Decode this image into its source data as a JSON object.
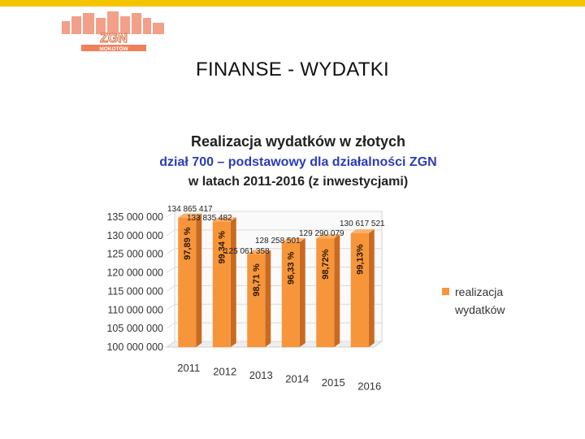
{
  "slide": {
    "title": "FINANSE - WYDATKI",
    "logo_text": "ZGN",
    "logo_subtext": "MOKOTÓW",
    "accent_bar_color": "#f5c400",
    "logo_color": "#f07f5b"
  },
  "chart_data": {
    "type": "bar",
    "style": "3d-cylinder",
    "title": "Realizacja wydatków w złotych",
    "subtitle_line1": "dział 700 – podstawowy dla działalności ZGN",
    "subtitle_line2": "w latach 2011-2016 (z inwestycjami)",
    "categories": [
      "2011",
      "2012",
      "2013",
      "2014",
      "2015",
      "2016"
    ],
    "series": [
      {
        "name": "realizacja wydatków",
        "values": [
          134865417,
          133835482,
          125061358,
          128258501,
          129290079,
          130617521
        ],
        "value_labels": [
          "134 865 417",
          "133 835 482",
          "125 061 358",
          "128 258 501",
          "129 290 079",
          "130 617 521"
        ],
        "percent_labels": [
          "97,89 %",
          "99,34 %",
          "98,71 %",
          "96,33 %",
          "98,72%",
          "99,13%"
        ],
        "color": "#f7953a"
      }
    ],
    "y_ticks": [
      100000000,
      105000000,
      110000000,
      115000000,
      120000000,
      125000000,
      130000000,
      135000000
    ],
    "y_tick_labels": [
      "100 000 000",
      "105 000 000",
      "110 000 000",
      "115 000 000",
      "120 000 000",
      "125 000 000",
      "130 000 000",
      "135 000 000"
    ],
    "ylim": [
      100000000,
      135000000
    ],
    "grid": true,
    "legend_position": "right",
    "title_color": "#222222",
    "subtitle_color": "#2a3db5"
  }
}
